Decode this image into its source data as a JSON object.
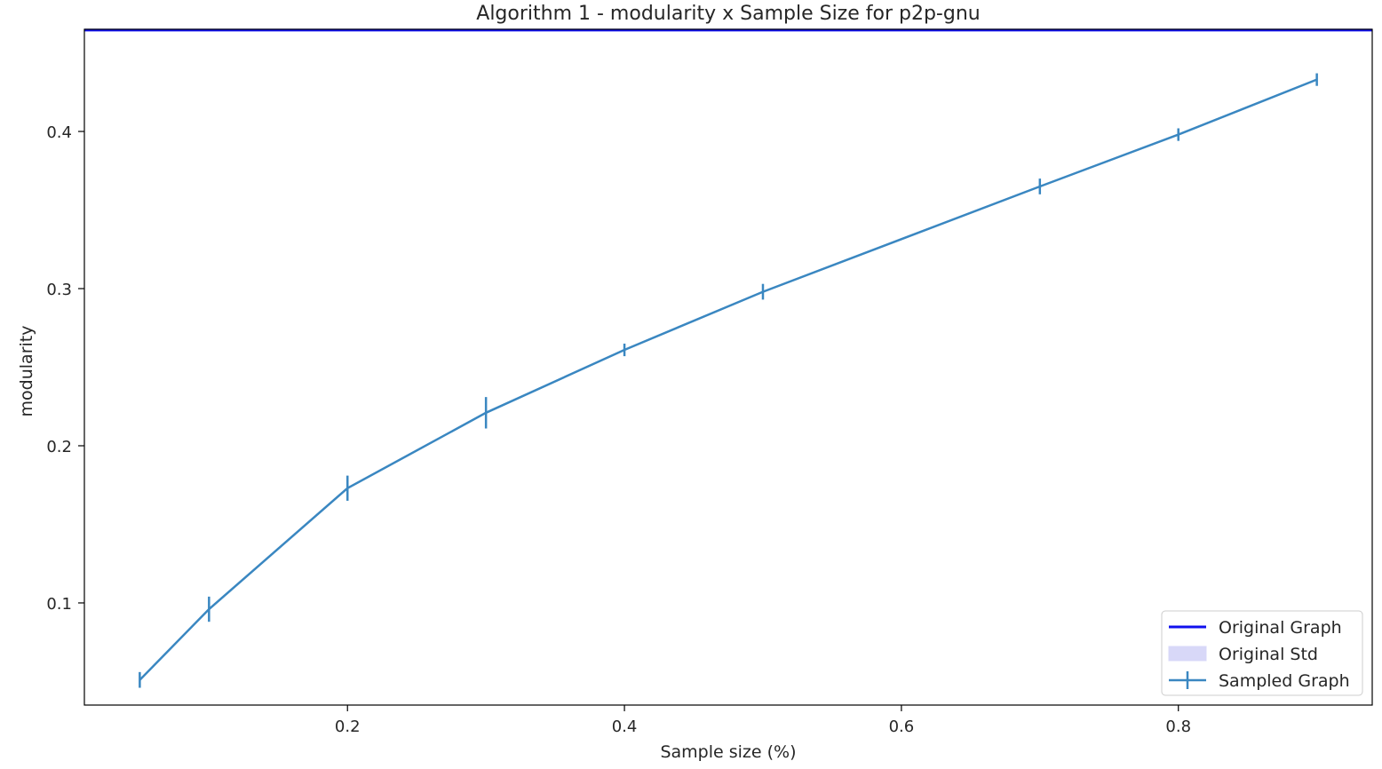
{
  "chart_data": {
    "type": "line",
    "title": "Algorithm 1 - modularity x Sample Size for p2p-gnu",
    "xlabel": "Sample size (%)",
    "ylabel": "modularity",
    "xlim": [
      0.01,
      0.94
    ],
    "ylim": [
      0.035,
      0.465
    ],
    "xticks": [
      0.2,
      0.4,
      0.6,
      0.8
    ],
    "yticks": [
      0.1,
      0.2,
      0.3,
      0.4
    ],
    "xtick_labels": [
      "0.2",
      "0.4",
      "0.6",
      "0.8"
    ],
    "ytick_labels": [
      "0.1",
      "0.2",
      "0.3",
      "0.4"
    ],
    "grid": false,
    "legend_position": "bottom-right",
    "original": {
      "name": "Original Graph",
      "value": 0.4645,
      "color": "#1010ee"
    },
    "original_std": {
      "name": "Original Std",
      "color": "#d8d8f8"
    },
    "series": [
      {
        "name": "Sampled Graph",
        "color": "#3a87c1",
        "x": [
          0.05,
          0.1,
          0.2,
          0.3,
          0.4,
          0.5,
          0.7,
          0.8,
          0.9
        ],
        "y": [
          0.051,
          0.096,
          0.173,
          0.221,
          0.261,
          0.298,
          0.365,
          0.398,
          0.433
        ],
        "yerr": [
          0.005,
          0.008,
          0.008,
          0.01,
          0.004,
          0.005,
          0.005,
          0.004,
          0.004
        ]
      }
    ]
  }
}
